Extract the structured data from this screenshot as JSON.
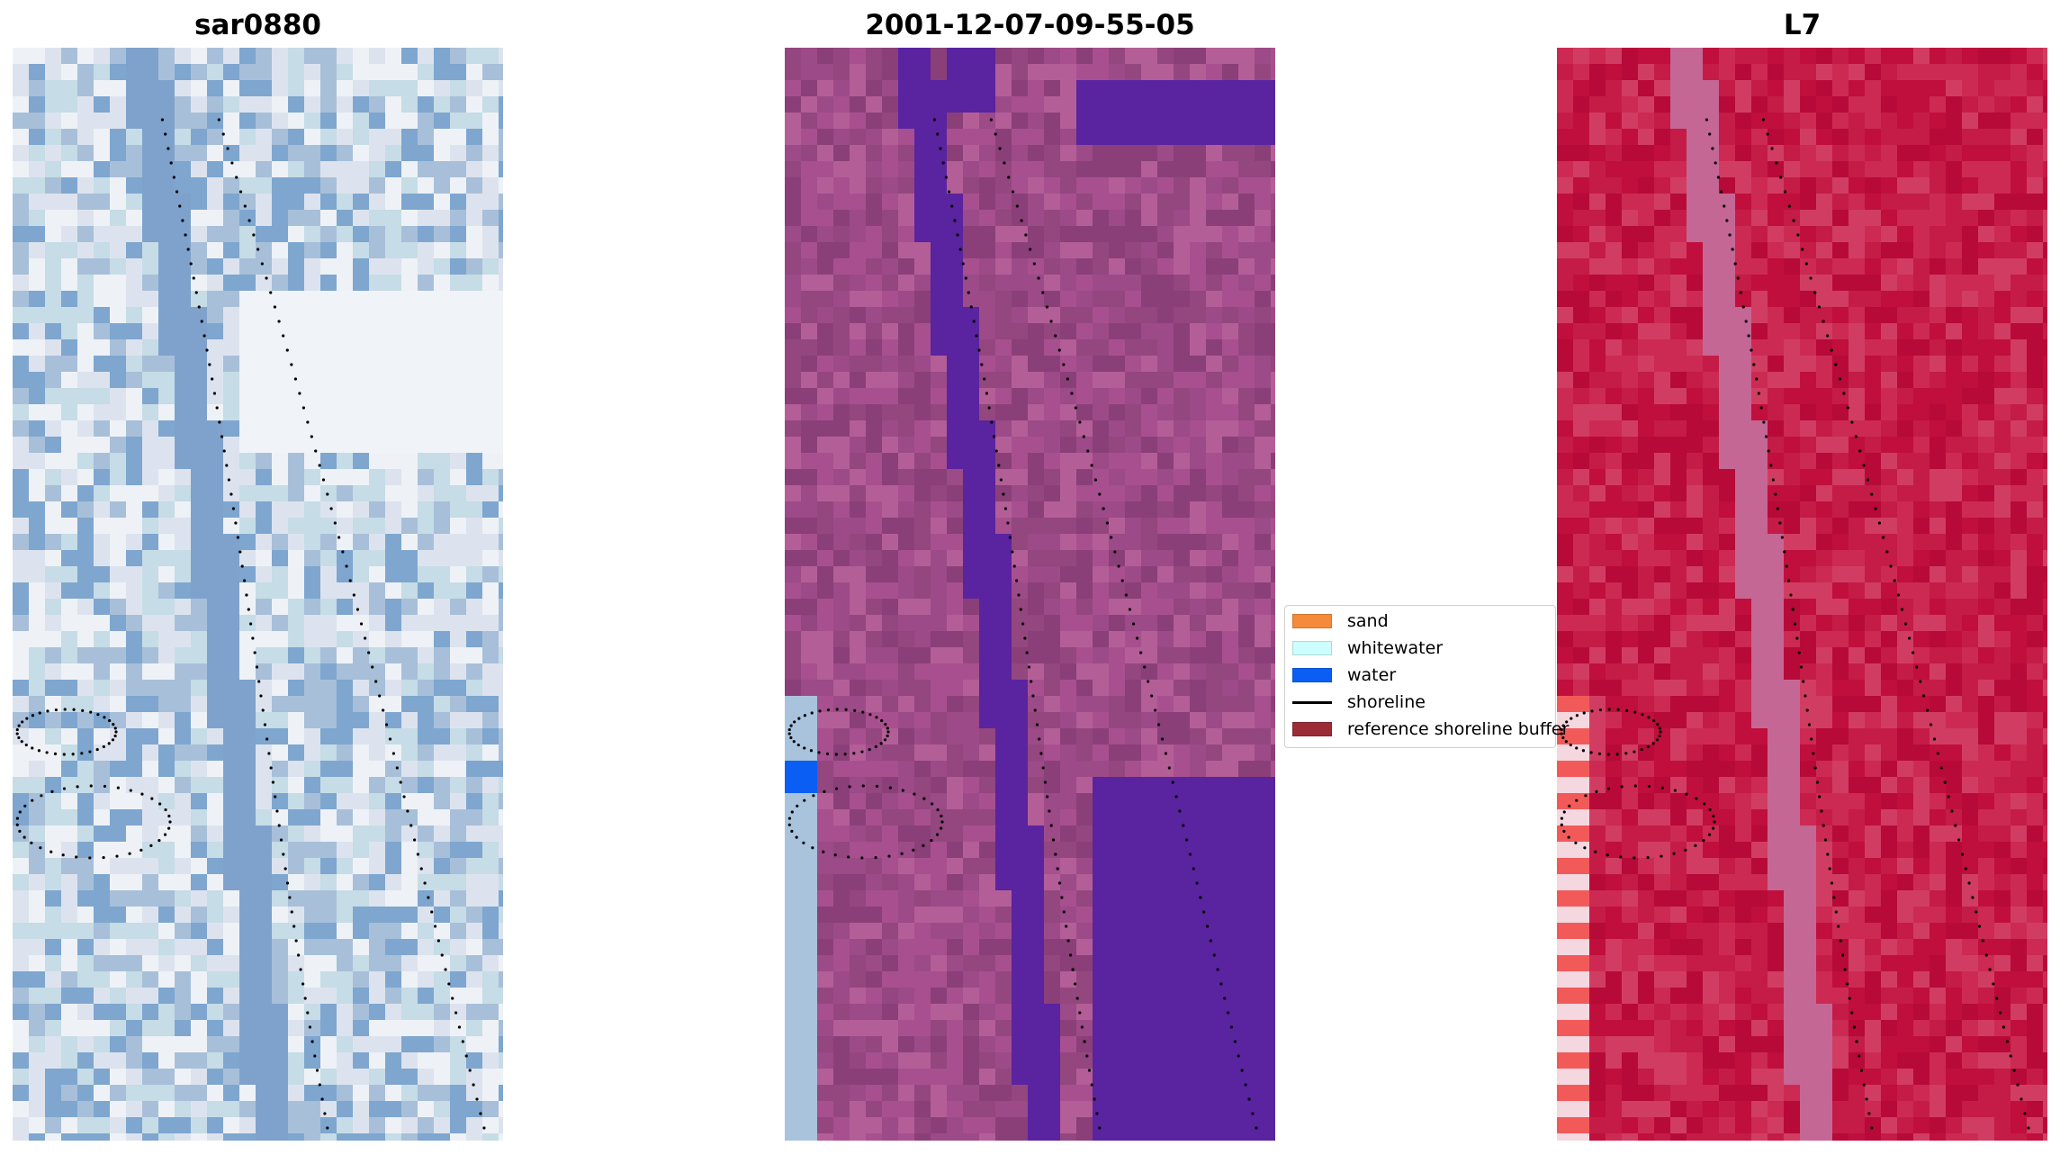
{
  "panels": [
    {
      "title": "sar0880",
      "palette": [
        "#dde3ee",
        "#a8bfd9",
        "#7ea6cf",
        "#c6dce6",
        "#eef2f6"
      ]
    },
    {
      "title": "2001-12-07-09-55-05",
      "palette": [
        "#94467f",
        "#a8508f",
        "#b45e98",
        "#8a3f78",
        "#9c4a88"
      ]
    },
    {
      "title": "L7",
      "palette": [
        "#c00f3c",
        "#cc2a52",
        "#b70a38",
        "#d13d62",
        "#c41c46"
      ]
    }
  ],
  "legend": {
    "items": [
      {
        "label": "sand",
        "color": "#f58a3a",
        "kind": "patch"
      },
      {
        "label": "whitewater",
        "color": "#ccffff",
        "kind": "patch"
      },
      {
        "label": "water",
        "color": "#0a5ef4",
        "kind": "patch"
      },
      {
        "label": "shoreline",
        "color": "#000000",
        "kind": "line"
      },
      {
        "label": "reference shoreline buffer",
        "color": "#9b2b35",
        "kind": "patch"
      }
    ]
  },
  "overlays": {
    "channel_color": "#5a23a0",
    "water_color": "#0a5ef4",
    "dot_color": "#000000"
  }
}
